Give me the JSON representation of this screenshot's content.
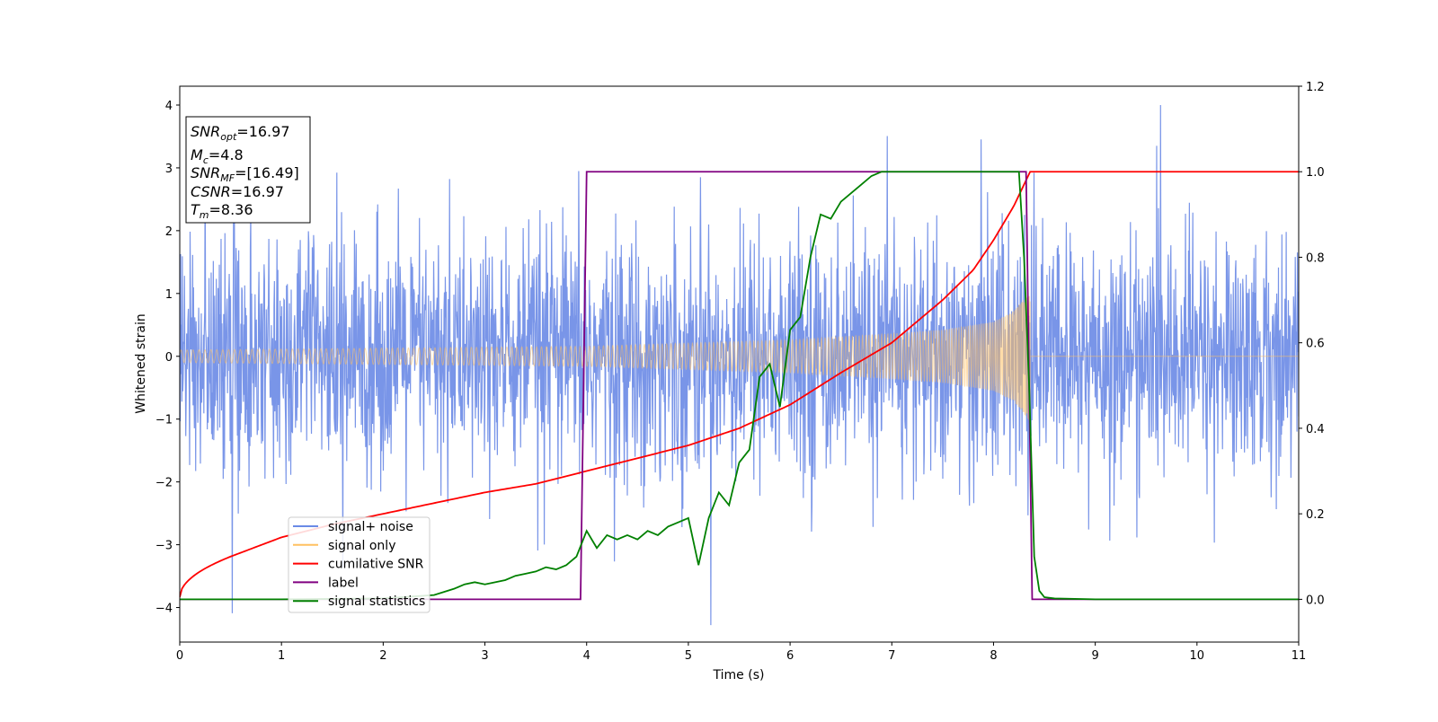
{
  "chart_data": {
    "type": "line",
    "xlabel": "Time (s)",
    "ylabel_left": "Whitened strain",
    "xlim": [
      0,
      11
    ],
    "ylim_left": [
      -4.55,
      4.3
    ],
    "ylim_right": [
      -0.1,
      1.2
    ],
    "x_ticks": [
      "0",
      "1",
      "2",
      "3",
      "4",
      "5",
      "6",
      "7",
      "8",
      "9",
      "10",
      "11"
    ],
    "y_left_ticks": [
      "4",
      "3",
      "2",
      "1",
      "0",
      "−1",
      "−2",
      "−3",
      "−4"
    ],
    "y_right_ticks": [
      "1.2",
      "1.0",
      "0.8",
      "0.6",
      "0.4",
      "0.2",
      "0.0"
    ],
    "grid": false,
    "legend_position": "lower-left",
    "series": [
      {
        "name": "signal+ noise",
        "axis": "left",
        "color": "#6a8ae6",
        "description": "dense noisy trace, approx. ±0.95 std with spikes up to about ±4",
        "x_range": [
          0,
          11
        ],
        "peak_values": [
          3.9,
          3.85,
          3.8,
          -4.15,
          -3.65,
          -3.6
        ]
      },
      {
        "name": "signal only",
        "axis": "left",
        "color": "#ffc060",
        "description": "chirp with envelope growing from about 0.1 to 1.0 at merger, zero after",
        "envelope": {
          "x": [
            0,
            2,
            4,
            6,
            7,
            7.5,
            8,
            8.2,
            8.3,
            8.36
          ],
          "y": [
            0.1,
            0.13,
            0.16,
            0.26,
            0.36,
            0.42,
            0.55,
            0.72,
            0.92,
            1.05
          ]
        },
        "after_merger": 0
      },
      {
        "name": "cumilative SNR",
        "axis": "right",
        "color": "#ff0000",
        "x": [
          0,
          0.25,
          0.5,
          1,
          1.5,
          2,
          2.5,
          3,
          3.5,
          4,
          4.5,
          5,
          5.5,
          6,
          6.5,
          7,
          7.5,
          7.8,
          8,
          8.2,
          8.3,
          8.36,
          11
        ],
        "y": [
          0.005,
          0.065,
          0.1,
          0.145,
          0.175,
          0.2,
          0.225,
          0.25,
          0.27,
          0.3,
          0.33,
          0.36,
          0.4,
          0.455,
          0.53,
          0.6,
          0.7,
          0.77,
          0.84,
          0.92,
          0.97,
          1.0,
          1.0
        ]
      },
      {
        "name": "label",
        "axis": "right",
        "color": "#800080",
        "x": [
          0,
          3.94,
          4.0,
          8.32,
          8.38,
          11
        ],
        "y": [
          0,
          0,
          1,
          1,
          0,
          0
        ]
      },
      {
        "name": "signal statistics",
        "axis": "right",
        "color": "#008000",
        "x": [
          0,
          1,
          2,
          2.5,
          2.7,
          2.8,
          2.9,
          3.0,
          3.1,
          3.2,
          3.3,
          3.4,
          3.5,
          3.6,
          3.7,
          3.8,
          3.9,
          4.0,
          4.1,
          4.2,
          4.3,
          4.4,
          4.5,
          4.6,
          4.7,
          4.8,
          4.9,
          5.0,
          5.1,
          5.2,
          5.3,
          5.4,
          5.5,
          5.6,
          5.7,
          5.8,
          5.9,
          6.0,
          6.1,
          6.2,
          6.3,
          6.4,
          6.5,
          6.6,
          6.7,
          6.8,
          6.9,
          7.0,
          7.5,
          8.0,
          8.25,
          8.3,
          8.35,
          8.4,
          8.45,
          8.5,
          8.6,
          9,
          11
        ],
        "y": [
          0,
          0,
          0.002,
          0.01,
          0.025,
          0.035,
          0.04,
          0.035,
          0.04,
          0.045,
          0.055,
          0.06,
          0.065,
          0.075,
          0.07,
          0.08,
          0.1,
          0.16,
          0.12,
          0.15,
          0.14,
          0.15,
          0.14,
          0.16,
          0.15,
          0.17,
          0.18,
          0.19,
          0.08,
          0.19,
          0.25,
          0.22,
          0.32,
          0.35,
          0.52,
          0.55,
          0.45,
          0.63,
          0.66,
          0.8,
          0.9,
          0.89,
          0.93,
          0.95,
          0.97,
          0.99,
          1.0,
          1.0,
          1.0,
          1.0,
          1.0,
          0.8,
          0.5,
          0.1,
          0.02,
          0.005,
          0.002,
          0,
          0
        ]
      }
    ],
    "stats_box": [
      {
        "label": "SNR",
        "sub": "opt",
        "value": "=16.97"
      },
      {
        "label": "M",
        "sub": "c",
        "value": "=4.8"
      },
      {
        "label": "SNR",
        "sub": "MF",
        "value": "=[16.49]"
      },
      {
        "label": "CSNR",
        "sub": "",
        "value": "=16.97"
      },
      {
        "label": "T",
        "sub": "m",
        "value": "=8.36"
      }
    ],
    "merger_time": 8.36
  }
}
